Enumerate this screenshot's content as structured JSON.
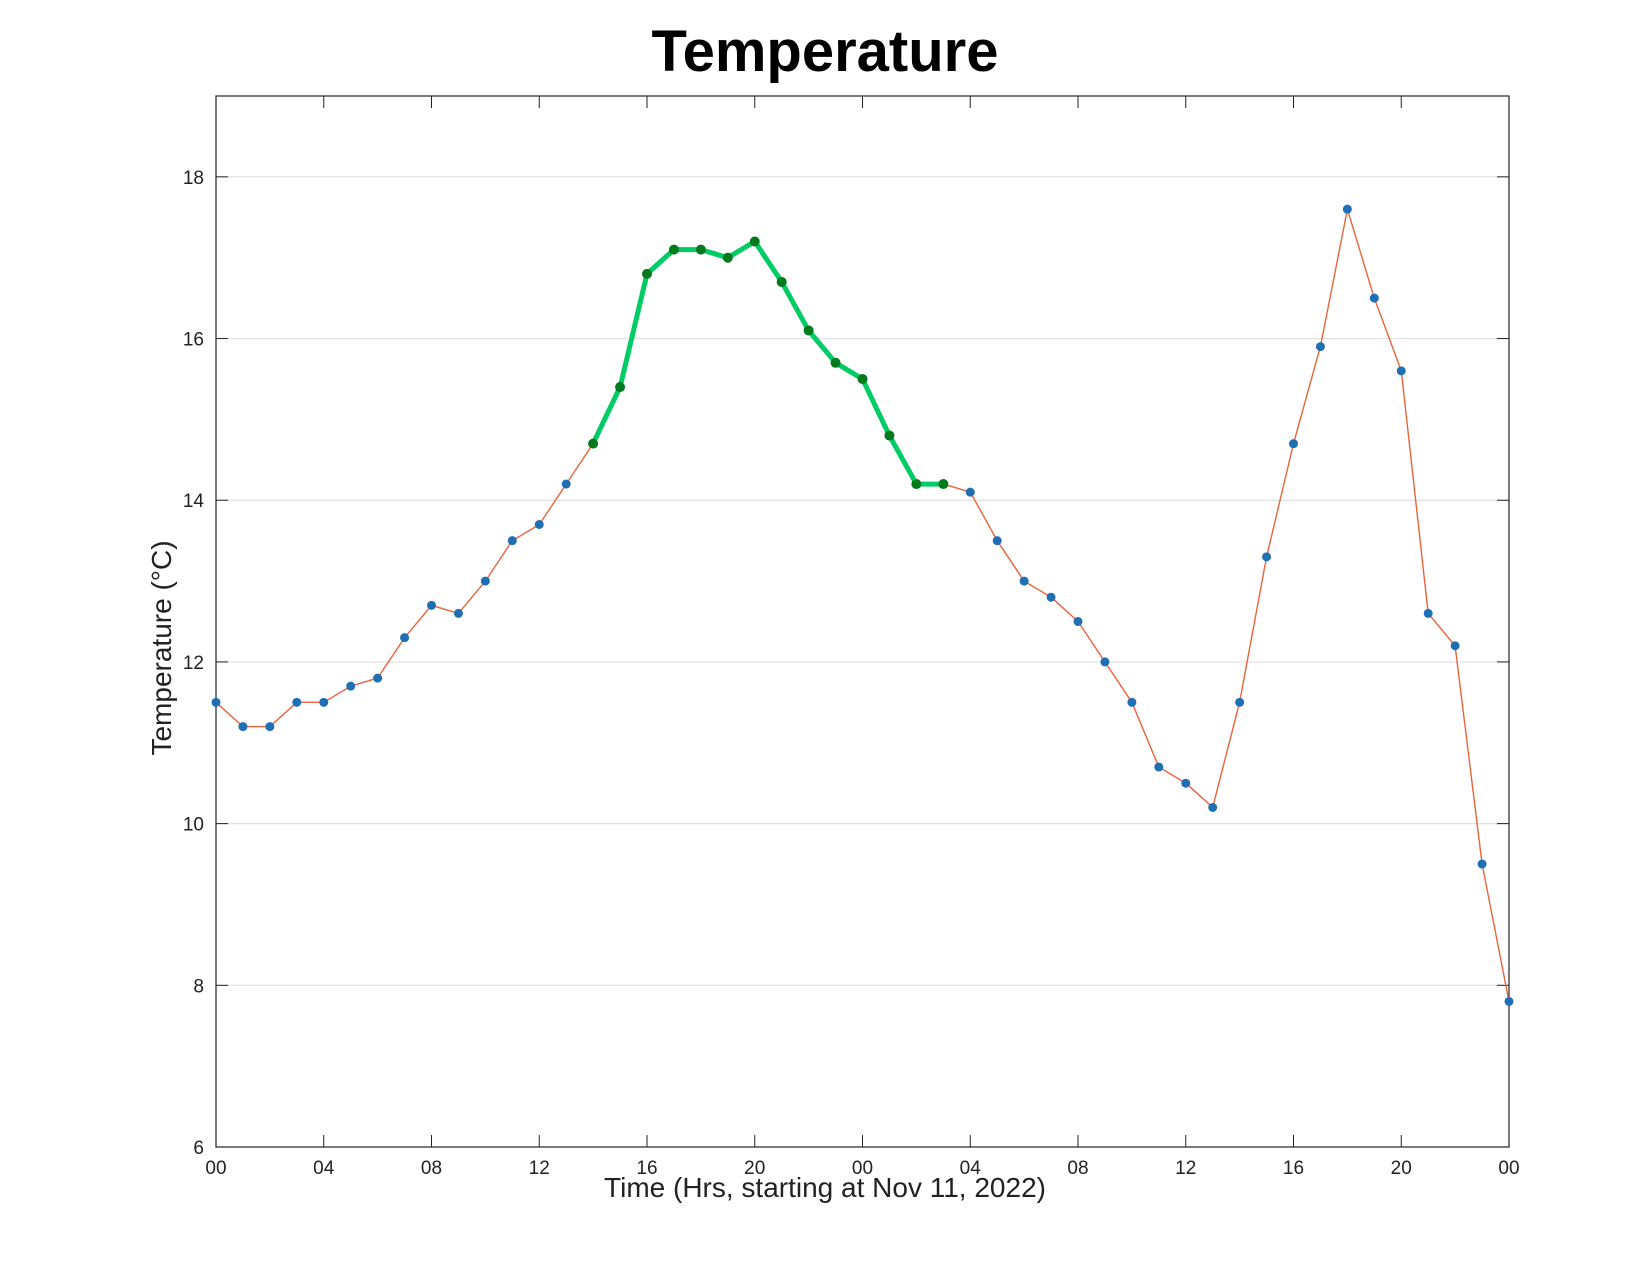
{
  "chart_data": {
    "type": "line",
    "title": "Temperature",
    "xlabel": "Time (Hrs, starting at Nov 11, 2022)",
    "ylabel": "Temperature (°C)",
    "xlim": [
      0,
      48
    ],
    "ylim": [
      6,
      19
    ],
    "grid": "horizontal",
    "x_ticks": [
      {
        "value": 0,
        "label": "00"
      },
      {
        "value": 4,
        "label": "04"
      },
      {
        "value": 8,
        "label": "08"
      },
      {
        "value": 12,
        "label": "12"
      },
      {
        "value": 16,
        "label": "16"
      },
      {
        "value": 20,
        "label": "20"
      },
      {
        "value": 24,
        "label": "00"
      },
      {
        "value": 28,
        "label": "04"
      },
      {
        "value": 32,
        "label": "08"
      },
      {
        "value": 36,
        "label": "12"
      },
      {
        "value": 40,
        "label": "16"
      },
      {
        "value": 44,
        "label": "20"
      },
      {
        "value": 48,
        "label": "00"
      }
    ],
    "y_ticks": [
      6,
      8,
      10,
      12,
      14,
      16,
      18
    ],
    "series": [
      {
        "color": "#e8643c",
        "marker_color": "#1f6fb5",
        "x": [
          0,
          1,
          2,
          3,
          4,
          5,
          6,
          7,
          8,
          9,
          10,
          11,
          12,
          13,
          14,
          15,
          16,
          17,
          18,
          19,
          20,
          21,
          22,
          23,
          24,
          25,
          26,
          27,
          28,
          29,
          30,
          31,
          32,
          33,
          34,
          35,
          36,
          37,
          38,
          39,
          40,
          41,
          42,
          43,
          44,
          45,
          46,
          47,
          48
        ],
        "y": [
          11.5,
          11.2,
          11.2,
          11.5,
          11.5,
          11.7,
          11.8,
          12.3,
          12.7,
          12.6,
          13.0,
          13.5,
          13.7,
          14.2,
          14.7,
          15.4,
          16.8,
          17.1,
          17.1,
          17.0,
          17.2,
          16.7,
          16.1,
          15.7,
          15.5,
          14.8,
          14.2,
          14.2,
          14.1,
          13.5,
          13.0,
          12.8,
          12.5,
          12.0,
          11.5,
          10.7,
          10.5,
          10.2,
          11.5,
          13.3,
          14.7,
          15.9,
          17.6,
          16.5,
          15.6,
          12.6,
          12.2,
          9.5,
          7.8
        ]
      },
      {
        "color": "#00cc66",
        "marker_color": "#007a1a",
        "x": [
          14,
          15,
          16,
          17,
          18,
          19,
          20,
          21,
          22,
          23,
          24,
          25,
          26,
          27
        ],
        "y": [
          14.7,
          15.4,
          16.8,
          17.1,
          17.1,
          17.0,
          17.2,
          16.7,
          16.1,
          15.7,
          15.5,
          14.8,
          14.2,
          14.2
        ]
      }
    ]
  }
}
